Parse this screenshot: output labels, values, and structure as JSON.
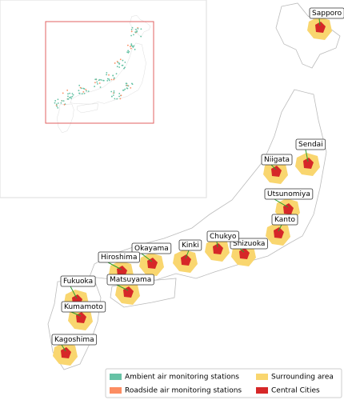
{
  "cities": [
    {
      "label": "Sapporo"
    },
    {
      "label": "Sendai"
    },
    {
      "label": "Niigata"
    },
    {
      "label": "Utsunomiya"
    },
    {
      "label": "Kanto"
    },
    {
      "label": "Shizuoka"
    },
    {
      "label": "Chukyo"
    },
    {
      "label": "Kinki"
    },
    {
      "label": "Okayama"
    },
    {
      "label": "Hiroshima"
    },
    {
      "label": "Matsuyama"
    },
    {
      "label": "Fukuoka"
    },
    {
      "label": "Kumamoto"
    },
    {
      "label": "Kagoshima"
    }
  ],
  "legend": {
    "items": [
      {
        "label": "Ambient air monitoring stations",
        "color": "#66c2a5"
      },
      {
        "label": "Roadside air monitoring stations",
        "color": "#fc8d62"
      },
      {
        "label": "Surrounding area",
        "color": "#f9d66f"
      },
      {
        "label": "Central Cities",
        "color": "#d62728"
      }
    ]
  }
}
